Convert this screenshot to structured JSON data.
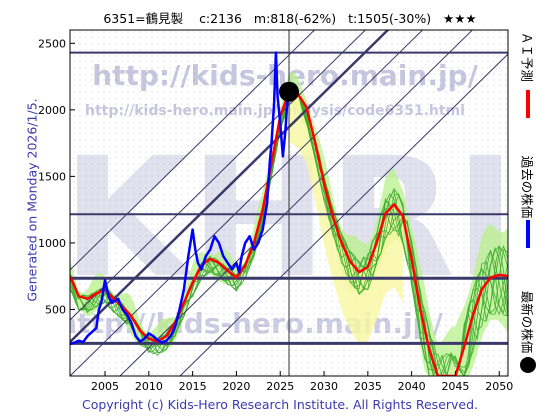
{
  "header": {
    "code_name": "6351=鶴見製",
    "current": "c:2136",
    "min_stat": "m:818(-62%)",
    "target_stat": "t:1505(-30%)",
    "rating": "★★★"
  },
  "generated_label": "Generated on Monday 2026/1/5.",
  "footer": "Copyright (c) Kids-Hero Research Institute. All Rights Reserved.",
  "watermark": {
    "url_big": "http://kids-hero.main.jp/",
    "url_small": "http://kids-hero.main.jp/analysis/code6351.html",
    "letters": "KHRI",
    "url_bottom": "http://kids-hero.main.jp/"
  },
  "legend": {
    "ai": "ＡＩ予測",
    "past": "過去の株価",
    "latest": "最新の株価"
  },
  "colors": {
    "ai": "#ff0000",
    "past": "#0000ff",
    "latest": "#000000",
    "lines": "#3a3a6a"
  },
  "chart_data": {
    "type": "line",
    "xlim": [
      2001,
      2051
    ],
    "ylim": [
      0,
      2600
    ],
    "x_ticks": [
      2005,
      2010,
      2015,
      2020,
      2025,
      2030,
      2035,
      2040,
      2045,
      2050
    ],
    "y_ticks": [
      500,
      1000,
      1500,
      2000,
      2500
    ],
    "horizontal_levels": [
      245,
      735,
      1215,
      2430
    ],
    "vertical_marker_year": 2026,
    "latest_point": {
      "x": 2026.0,
      "y": 2136
    },
    "series": [
      {
        "name": "過去の株価",
        "points": [
          [
            2001,
            240
          ],
          [
            2001.5,
            250
          ],
          [
            2002,
            265
          ],
          [
            2002.5,
            255
          ],
          [
            2003,
            300
          ],
          [
            2003.5,
            330
          ],
          [
            2004,
            360
          ],
          [
            2004.3,
            500
          ],
          [
            2004.6,
            560
          ],
          [
            2005,
            720
          ],
          [
            2005.4,
            600
          ],
          [
            2005.8,
            550
          ],
          [
            2006,
            560
          ],
          [
            2006.5,
            580
          ],
          [
            2007,
            500
          ],
          [
            2007.5,
            460
          ],
          [
            2008,
            400
          ],
          [
            2008.5,
            300
          ],
          [
            2009,
            260
          ],
          [
            2009.5,
            280
          ],
          [
            2010,
            320
          ],
          [
            2010.5,
            300
          ],
          [
            2011,
            270
          ],
          [
            2011.5,
            250
          ],
          [
            2012,
            265
          ],
          [
            2012.5,
            300
          ],
          [
            2013,
            370
          ],
          [
            2013.5,
            500
          ],
          [
            2014,
            650
          ],
          [
            2014.5,
            900
          ],
          [
            2015,
            1100
          ],
          [
            2015.3,
            950
          ],
          [
            2015.6,
            850
          ],
          [
            2016,
            800
          ],
          [
            2016.5,
            900
          ],
          [
            2017,
            950
          ],
          [
            2017.5,
            1050
          ],
          [
            2018,
            1000
          ],
          [
            2018.5,
            900
          ],
          [
            2019,
            850
          ],
          [
            2019.5,
            800
          ],
          [
            2020,
            850
          ],
          [
            2020.3,
            780
          ],
          [
            2020.6,
            900
          ],
          [
            2021,
            1000
          ],
          [
            2021.5,
            1050
          ],
          [
            2022,
            950
          ],
          [
            2022.5,
            1000
          ],
          [
            2023,
            1100
          ],
          [
            2023.5,
            1300
          ],
          [
            2023.8,
            1600
          ],
          [
            2024,
            1750
          ],
          [
            2024.3,
            2050
          ],
          [
            2024.5,
            2430
          ],
          [
            2024.7,
            2100
          ],
          [
            2025,
            1900
          ],
          [
            2025.3,
            1650
          ],
          [
            2025.6,
            1850
          ],
          [
            2025.8,
            2050
          ],
          [
            2026,
            2136
          ]
        ]
      },
      {
        "name": "ＡＩ予測",
        "points": [
          [
            2001,
            750
          ],
          [
            2002,
            600
          ],
          [
            2003,
            580
          ],
          [
            2004,
            620
          ],
          [
            2005,
            650
          ],
          [
            2006,
            580
          ],
          [
            2007,
            520
          ],
          [
            2008,
            450
          ],
          [
            2009,
            340
          ],
          [
            2010,
            280
          ],
          [
            2011,
            260
          ],
          [
            2012,
            300
          ],
          [
            2013,
            400
          ],
          [
            2014,
            550
          ],
          [
            2015,
            700
          ],
          [
            2016,
            830
          ],
          [
            2017,
            880
          ],
          [
            2018,
            850
          ],
          [
            2019,
            790
          ],
          [
            2020,
            740
          ],
          [
            2021,
            830
          ],
          [
            2022,
            1000
          ],
          [
            2023,
            1250
          ],
          [
            2024,
            1600
          ],
          [
            2025,
            1950
          ],
          [
            2026,
            2136
          ],
          [
            2027,
            2120
          ],
          [
            2028,
            2020
          ],
          [
            2029,
            1750
          ],
          [
            2030,
            1450
          ],
          [
            2031,
            1200
          ],
          [
            2032,
            1000
          ],
          [
            2033,
            860
          ],
          [
            2034,
            780
          ],
          [
            2035,
            820
          ],
          [
            2036,
            1000
          ],
          [
            2037,
            1220
          ],
          [
            2038,
            1290
          ],
          [
            2039,
            1200
          ],
          [
            2040,
            880
          ],
          [
            2041,
            500
          ],
          [
            2042,
            200
          ],
          [
            2043,
            0
          ],
          [
            2044,
            0
          ],
          [
            2045,
            0
          ],
          [
            2046,
            220
          ],
          [
            2047,
            460
          ],
          [
            2048,
            650
          ],
          [
            2049,
            740
          ],
          [
            2050,
            760
          ],
          [
            2051,
            750
          ]
        ]
      }
    ]
  }
}
